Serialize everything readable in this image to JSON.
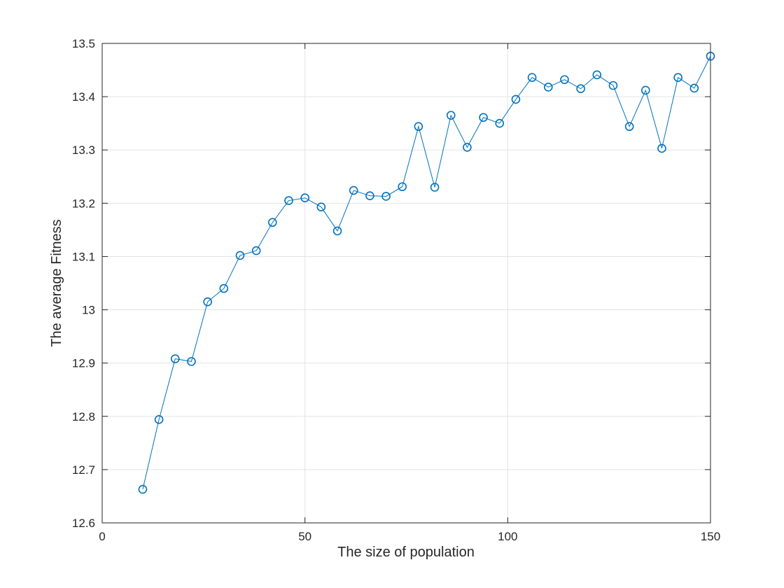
{
  "chart_data": {
    "type": "line",
    "title": "",
    "xlabel": "The size of population",
    "ylabel": "The average Fitness",
    "xlim": [
      0,
      150
    ],
    "ylim": [
      12.6,
      13.5
    ],
    "xticks": [
      0,
      50,
      100,
      150
    ],
    "xtick_labels": [
      "0",
      "50",
      "100",
      "150"
    ],
    "yticks": [
      12.6,
      12.7,
      12.8,
      12.9,
      13.0,
      13.1,
      13.2,
      13.3,
      13.4,
      13.5
    ],
    "ytick_labels": [
      "12.6",
      "12.7",
      "12.8",
      "12.9",
      "13",
      "13.1",
      "13.2",
      "13.3",
      "13.4",
      "13.5"
    ],
    "grid": true,
    "legend": "none",
    "marker": "circle",
    "color": "#0072BD",
    "series": [
      {
        "x": [
          10,
          14,
          18,
          22,
          26,
          30,
          34,
          38,
          42,
          46,
          50,
          54,
          58,
          62,
          66,
          70,
          74,
          78,
          82,
          86,
          90,
          94,
          98,
          102,
          106,
          110,
          114,
          118,
          122,
          126,
          130,
          134,
          138,
          142,
          146,
          150
        ],
        "y": [
          12.663,
          12.794,
          12.908,
          12.903,
          13.015,
          13.04,
          13.102,
          13.111,
          13.164,
          13.205,
          13.21,
          13.193,
          13.148,
          13.224,
          13.214,
          13.213,
          13.231,
          13.344,
          13.23,
          13.365,
          13.305,
          13.361,
          13.35,
          13.395,
          13.436,
          13.418,
          13.432,
          13.415,
          13.441,
          13.421,
          13.344,
          13.412,
          13.303,
          13.436,
          13.416,
          13.476
        ]
      }
    ]
  }
}
